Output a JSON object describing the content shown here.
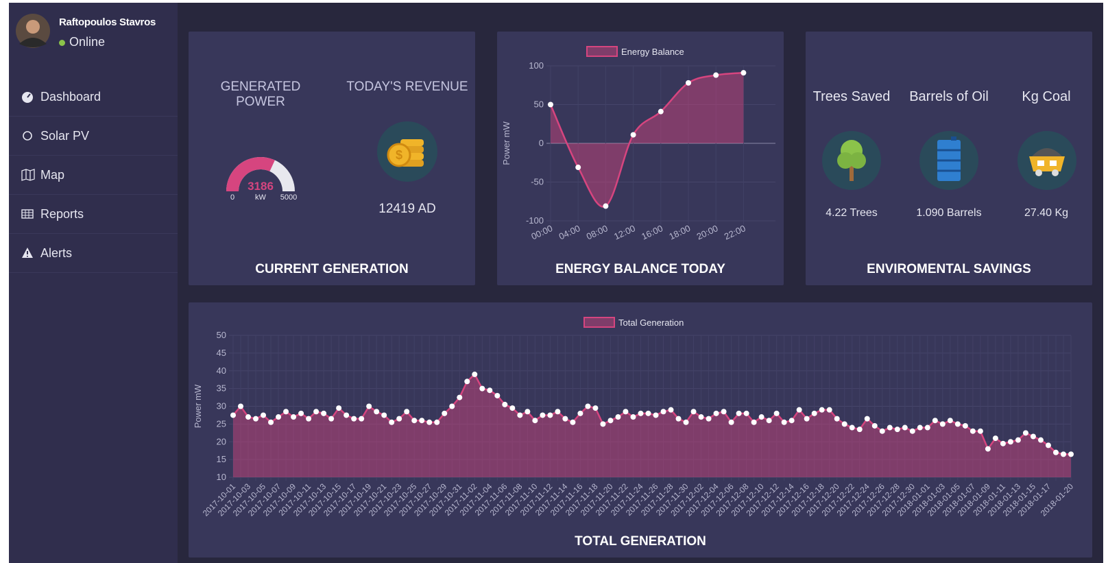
{
  "user": {
    "name": "Raftopoulos Stavros",
    "status": "Online"
  },
  "nav": [
    "Dashboard",
    "Solar PV",
    "Map",
    "Reports",
    "Alerts"
  ],
  "current_generation": {
    "title": "CURRENT GENERATION",
    "power_label": "GENERATED POWER",
    "gauge": {
      "value": 3186,
      "unit": "kW",
      "min": 0,
      "max": 5000,
      "color": "#d6457f"
    },
    "revenue_label": "TODAY'S REVENUE",
    "revenue": "12419 AD"
  },
  "environmental": {
    "title": "ENVIROMENTAL SAVINGS",
    "items": [
      {
        "label": "Trees Saved",
        "value": "4.22 Trees"
      },
      {
        "label": "Barrels of Oil",
        "value": "1.090 Barrels"
      },
      {
        "label": "Kg Coal",
        "value": "27.40 Kg"
      }
    ]
  },
  "chart_data": [
    {
      "type": "line",
      "title": "ENERGY BALANCE TODAY",
      "y_label": "Power mW",
      "smooth": true,
      "fill": true,
      "grid": true,
      "categories": [
        "00:00",
        "04:00",
        "08:00",
        "12:00",
        "16:00",
        "18:00",
        "20:00",
        "22:00"
      ],
      "series": [
        {
          "name": "Energy Balance",
          "color": "#d6457f",
          "values": [
            50,
            -31,
            -81,
            11,
            41,
            78,
            88,
            91
          ]
        }
      ],
      "ylim": [
        -100,
        100
      ],
      "yticks": [
        -100,
        -50,
        0,
        50,
        100
      ]
    },
    {
      "type": "line",
      "title": "TOTAL GENERATION",
      "y_label": "Power mW",
      "smooth": false,
      "fill": true,
      "grid": true,
      "categories": [
        "2017-10-01",
        null,
        "2017-10-03",
        null,
        "2017-10-05",
        null,
        "2017-10-07",
        null,
        "2017-10-09",
        null,
        "2017-10-11",
        null,
        "2017-10-13",
        null,
        "2017-10-15",
        null,
        "2017-10-17",
        null,
        "2017-10-19",
        null,
        "2017-10-21",
        null,
        "2017-10-23",
        null,
        "2017-10-25",
        null,
        "2017-10-27",
        null,
        "2017-10-29",
        null,
        "2017-10-31",
        null,
        "2017-11-02",
        null,
        "2017-11-04",
        null,
        "2017-11-06",
        null,
        "2017-11-08",
        null,
        "2017-11-10",
        null,
        "2017-11-12",
        null,
        "2017-11-14",
        null,
        "2017-11-16",
        null,
        "2017-11-18",
        null,
        "2017-11-20",
        null,
        "2017-11-22",
        null,
        "2017-11-24",
        null,
        "2017-11-26",
        null,
        "2017-11-28",
        null,
        "2017-11-30",
        null,
        "2017-12-02",
        null,
        "2017-12-04",
        null,
        "2017-12-06",
        null,
        "2017-12-08",
        null,
        "2017-12-10",
        null,
        "2017-12-12",
        null,
        "2017-12-14",
        null,
        "2017-12-16",
        null,
        "2017-12-18",
        null,
        "2017-12-20",
        null,
        "2017-12-22",
        null,
        "2017-12-24",
        null,
        "2017-12-26",
        null,
        "2017-12-28",
        null,
        "2017-12-30",
        null,
        "2018-01-01",
        null,
        "2018-01-03",
        null,
        "2018-01-05",
        null,
        "2018-01-07",
        null,
        "2018-01-09",
        null,
        "2018-01-11",
        null,
        "2018-01-13",
        null,
        "2018-01-15",
        null,
        "2018-01-17",
        null,
        null,
        "2018-01-20"
      ],
      "series": [
        {
          "name": "Total Generation",
          "color": "#d6457f",
          "values": [
            27.5,
            30,
            27,
            26.5,
            27.5,
            25.5,
            27,
            28.5,
            27,
            28,
            26.5,
            28.5,
            28,
            26.5,
            29.5,
            27.5,
            26.5,
            26.5,
            30,
            28.5,
            27.5,
            25.5,
            26.5,
            28.5,
            26,
            26,
            25.5,
            25.5,
            28,
            30,
            32.5,
            37,
            39,
            35,
            34.5,
            33,
            30.5,
            29.5,
            27.5,
            28.5,
            26,
            27.5,
            27.5,
            28.5,
            26.5,
            25.5,
            28,
            30,
            29.5,
            25,
            26,
            27,
            28.5,
            27,
            28,
            28,
            27.5,
            28.5,
            29,
            26.5,
            25.5,
            28.5,
            27,
            26.5,
            28,
            28.5,
            25.5,
            28,
            28,
            25.5,
            27,
            26,
            28,
            25.5,
            26,
            29,
            26.5,
            28,
            29,
            29,
            26.5,
            25,
            24,
            23.5,
            26.5,
            24.5,
            23,
            24,
            23.5,
            24,
            23,
            24,
            24,
            26,
            25,
            26,
            25,
            24.5,
            23,
            23,
            18,
            21,
            19.5,
            20,
            20.5,
            22.5,
            21.5,
            20.5,
            19,
            17,
            16.5,
            16.5
          ]
        }
      ],
      "ylim": [
        10,
        50
      ],
      "yticks": [
        10,
        15,
        20,
        25,
        30,
        35,
        40,
        45,
        50
      ]
    }
  ]
}
